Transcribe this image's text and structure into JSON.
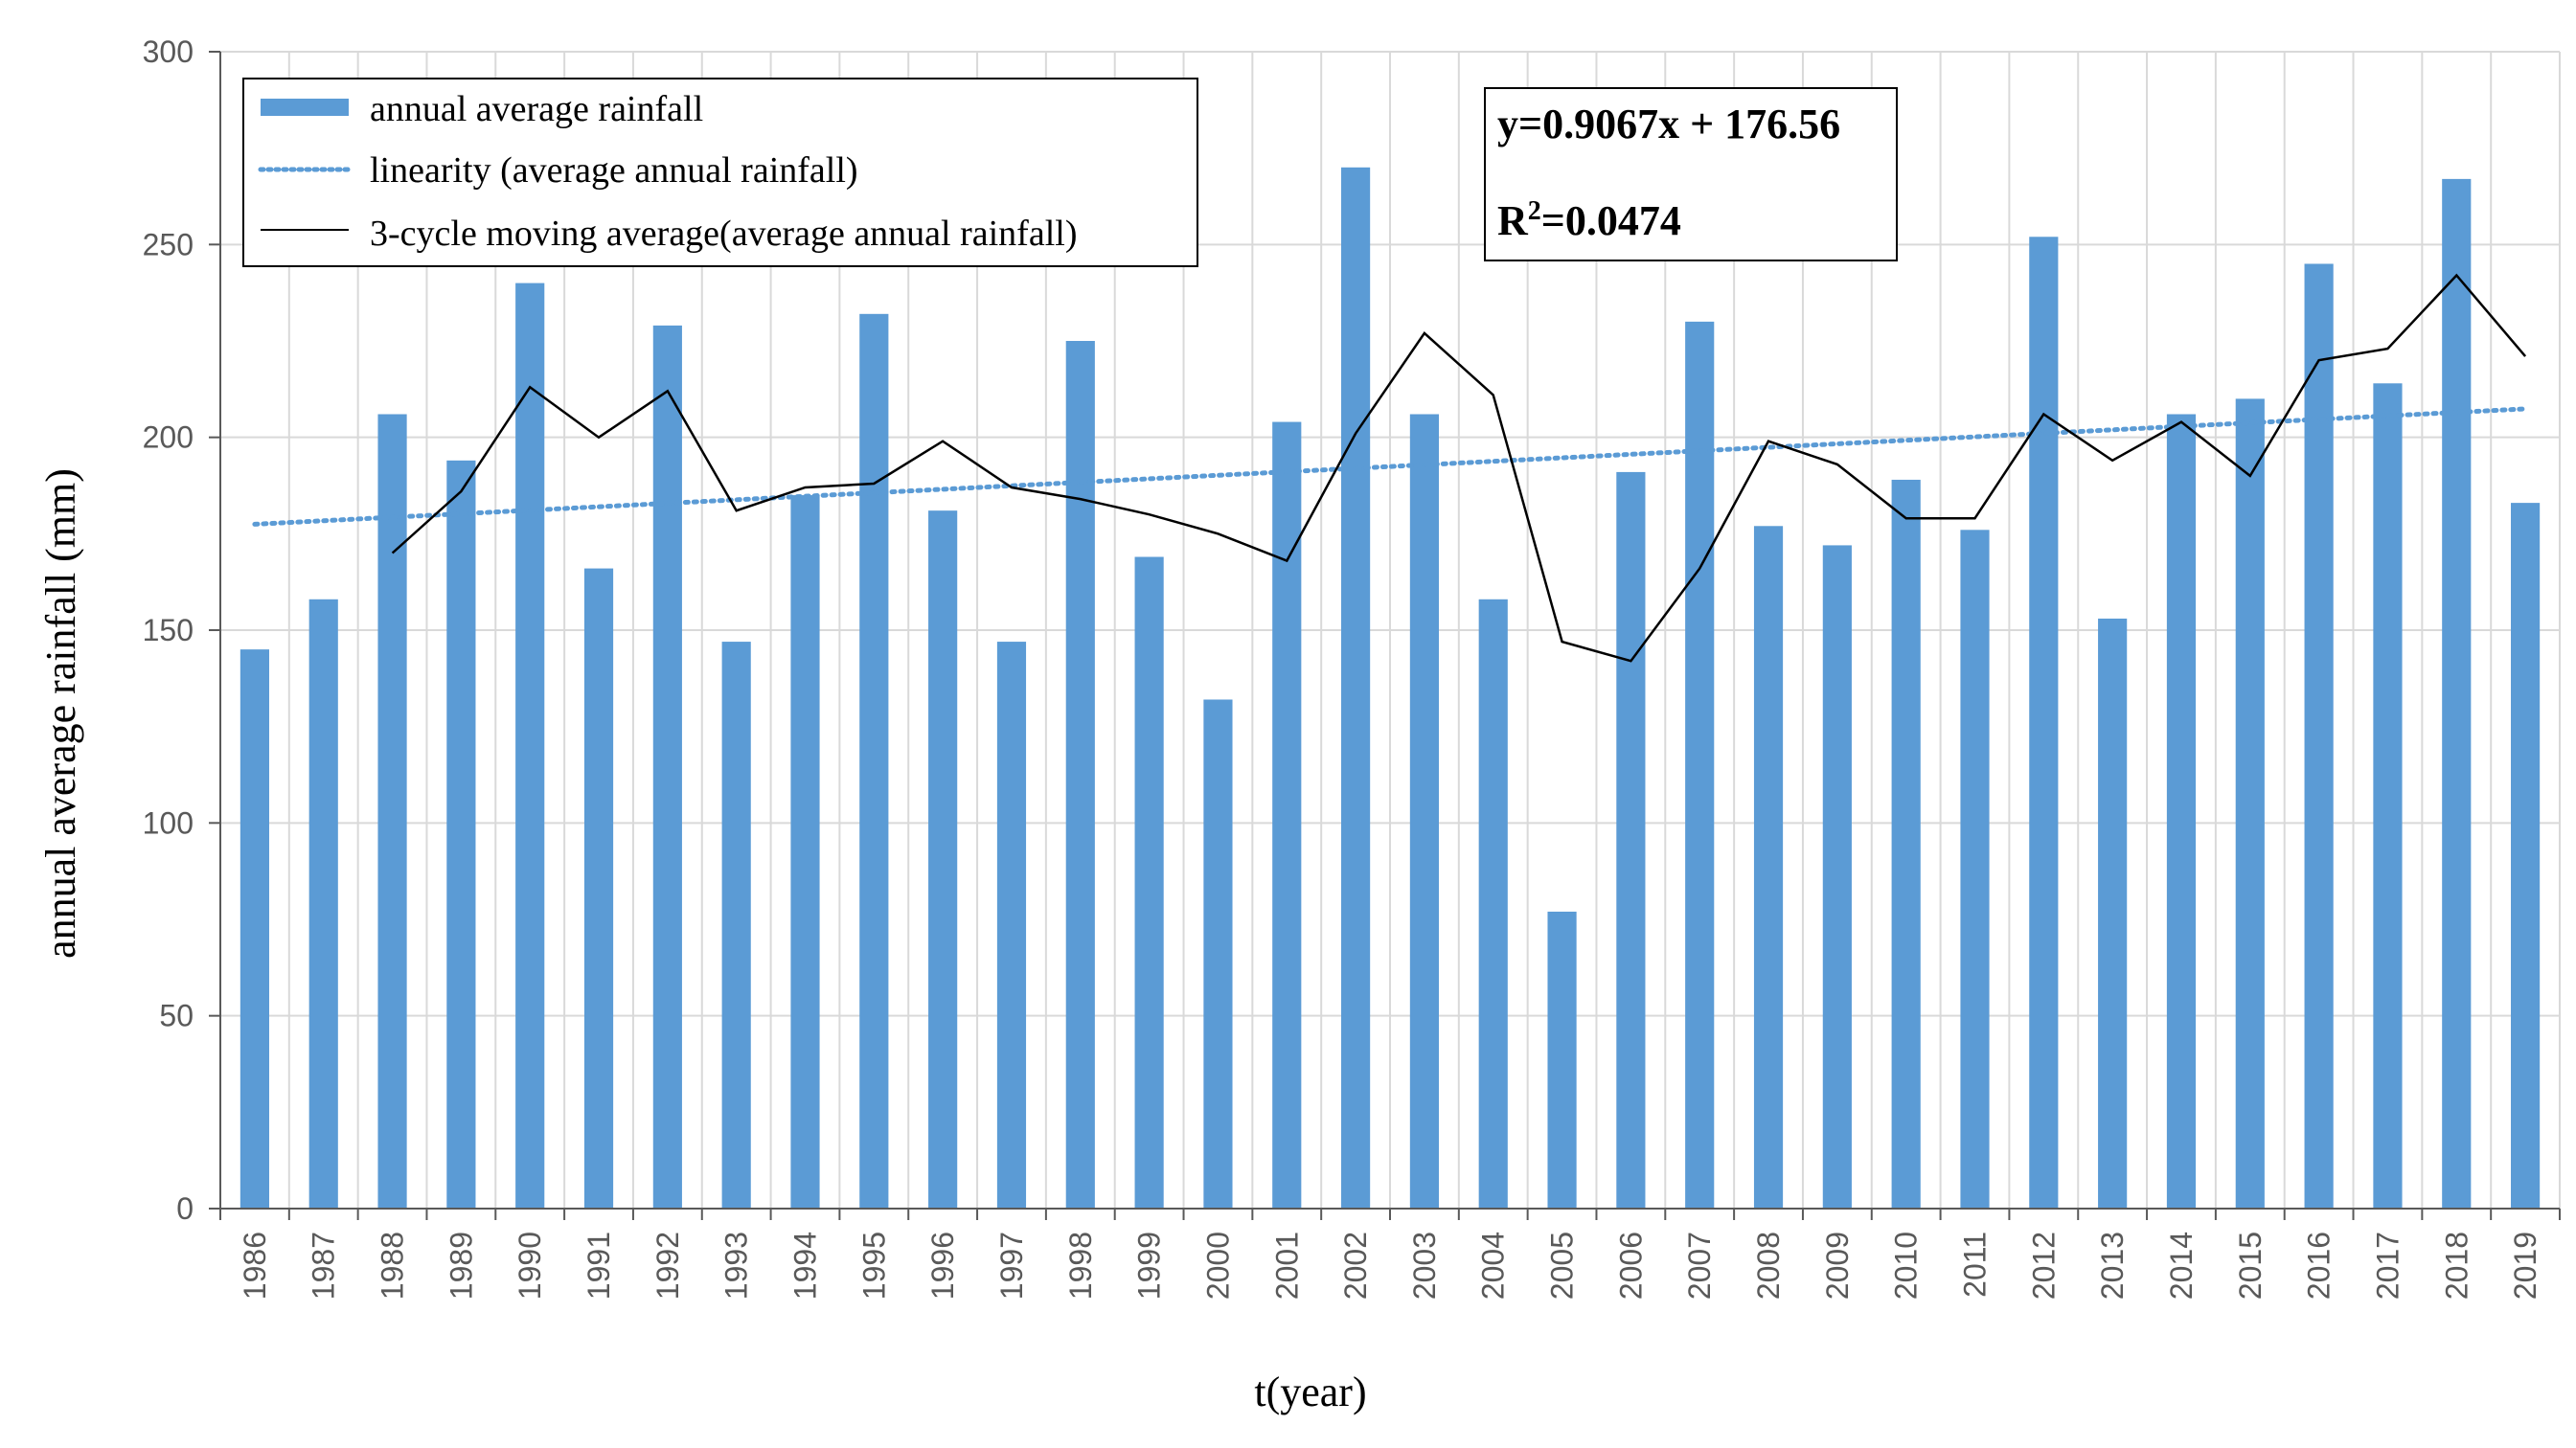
{
  "chart_data": {
    "type": "bar",
    "title": "",
    "xlabel": "t(year)",
    "ylabel": "annual average rainfall (mm)",
    "ylim": [
      0,
      300
    ],
    "yticks": [
      0,
      50,
      100,
      150,
      200,
      250,
      300
    ],
    "grid": true,
    "categories": [
      "1986",
      "1987",
      "1988",
      "1989",
      "1990",
      "1991",
      "1992",
      "1993",
      "1994",
      "1995",
      "1996",
      "1997",
      "1998",
      "1999",
      "2000",
      "2001",
      "2002",
      "2003",
      "2004",
      "2005",
      "2006",
      "2007",
      "2008",
      "2009",
      "2010",
      "2011",
      "2012",
      "2013",
      "2014",
      "2015",
      "2016",
      "2017",
      "2018",
      "2019"
    ],
    "series": [
      {
        "name": "annual average rainfall",
        "kind": "bar",
        "color": "#5B9BD5",
        "values": [
          145,
          158,
          206,
          194,
          240,
          166,
          229,
          147,
          185,
          232,
          181,
          147,
          225,
          169,
          132,
          204,
          270,
          206,
          158,
          77,
          191,
          230,
          177,
          172,
          189,
          176,
          252,
          153,
          206,
          210,
          245,
          214,
          267,
          183
        ]
      },
      {
        "name": "linearity (average annual rainfall)",
        "kind": "trendline",
        "color": "#5B9BD5",
        "slope": 0.9067,
        "intercept": 176.56
      },
      {
        "name": "3-cycle moving average(average annual rainfall)",
        "kind": "line",
        "color": "#000000",
        "values": [
          null,
          null,
          170,
          186,
          213,
          200,
          212,
          181,
          187,
          188,
          199,
          187,
          184,
          180,
          175,
          168,
          201,
          227,
          211,
          147,
          142,
          166,
          199,
          193,
          179,
          179,
          206,
          194,
          204,
          190,
          220,
          223,
          242,
          221
        ]
      }
    ],
    "legend": {
      "position": "top-left",
      "items": [
        {
          "label": "annual average rainfall",
          "swatch": "bar"
        },
        {
          "label": "linearity (average annual rainfall)",
          "swatch": "dotted"
        },
        {
          "label": "3-cycle moving average(average annual rainfall)",
          "swatch": "line"
        }
      ]
    },
    "annotation": {
      "equation": "y=0.9067x + 176.56",
      "r2_prefix": "R",
      "r2_sup": "2",
      "r2_value": "=0.0474"
    }
  }
}
